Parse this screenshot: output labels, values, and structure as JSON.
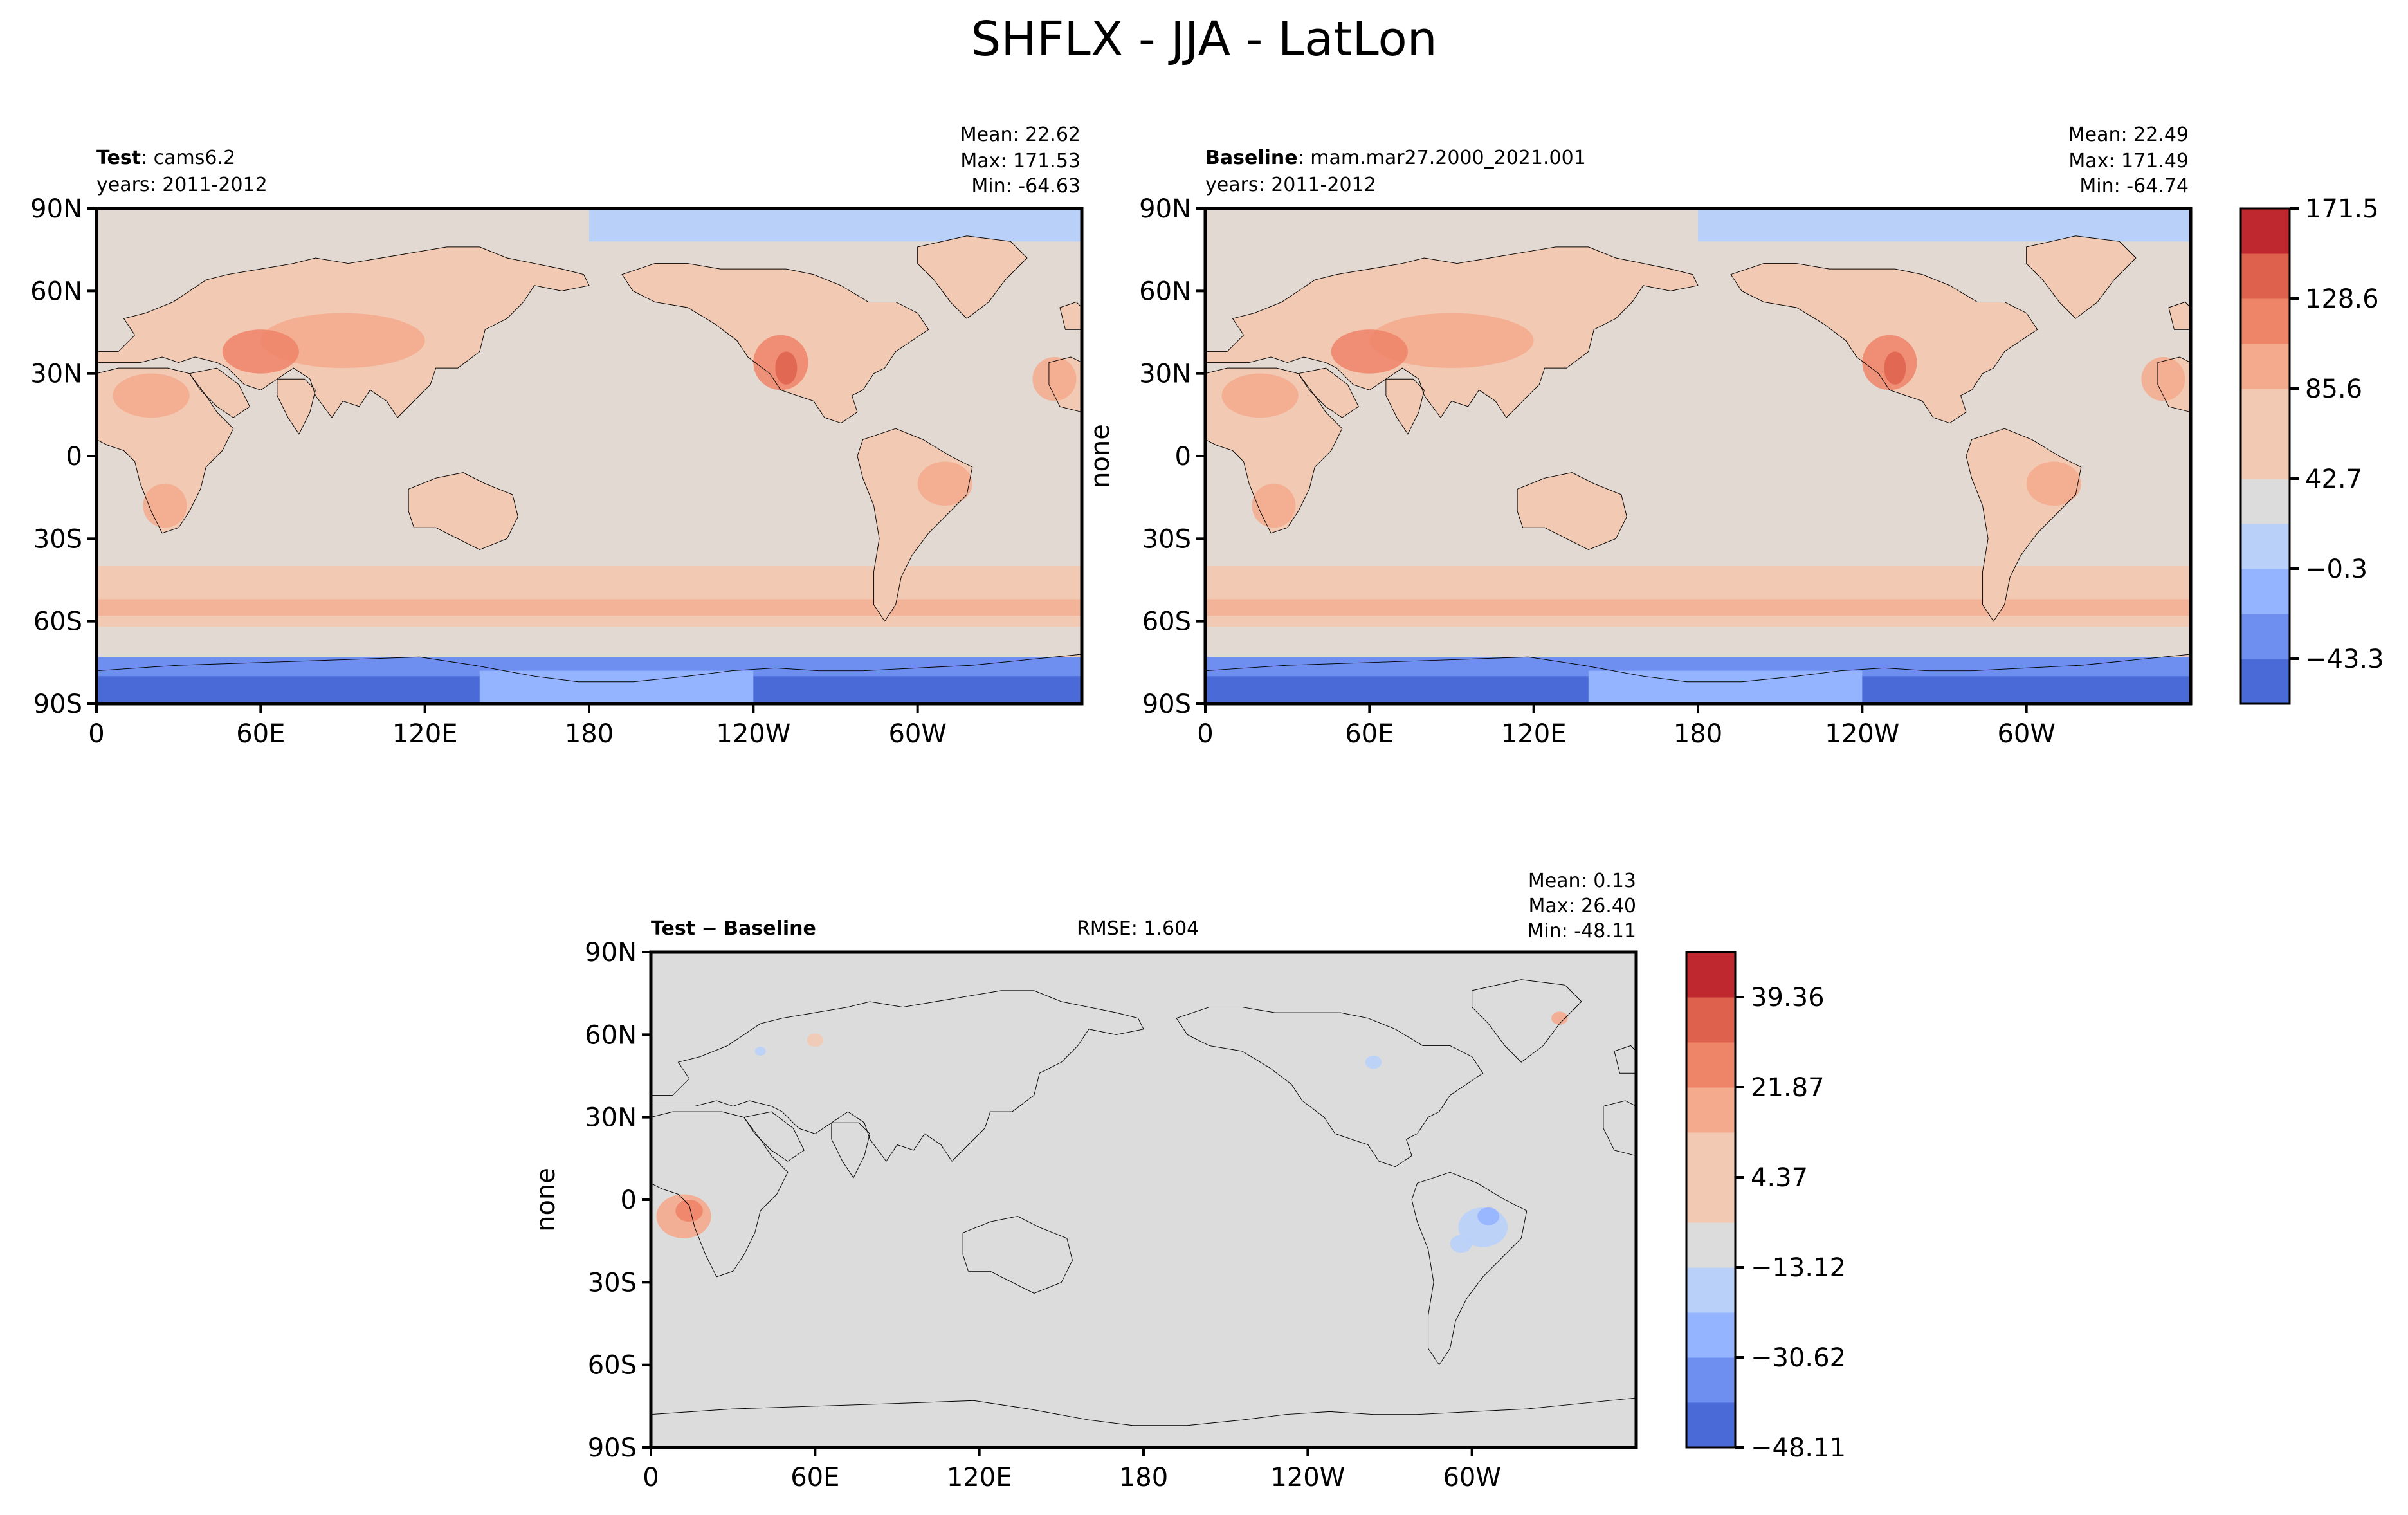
{
  "figure": {
    "title": "SHFLX - JJA - LatLon"
  },
  "colors": {
    "coolwarm": [
      "#4a6ad8",
      "#6f8ff0",
      "#94b4ff",
      "#b9d0f9",
      "#dcdcdc",
      "#f2c9b3",
      "#f4aa8d",
      "#ee8468",
      "#de614d",
      "#c0282f"
    ],
    "land_border": "#000000",
    "diff_background": "#dcdcdc",
    "mean_background": "#e3d9d3"
  },
  "panels": {
    "test": {
      "label_bold": "Test",
      "label_rest": ": cams6.2",
      "years": "years: 2011-2012",
      "mean": "Mean: 22.62",
      "max": "Max: 171.53",
      "min": "Min: -64.63"
    },
    "baseline": {
      "label_bold": "Baseline",
      "label_rest": ": mam.mar27.2000_2021.001",
      "years": "years: 2011-2012",
      "mean": "Mean: 22.49",
      "max": "Max: 171.49",
      "min": "Min: -64.74",
      "ylabel": "none"
    },
    "diff": {
      "label_bold_1": "Test",
      "label_sep": " − ",
      "label_bold_2": "Baseline",
      "rmse": "RMSE: 1.604",
      "mean": "Mean:  0.13",
      "max": "Max: 26.40",
      "min": "Min: -48.11",
      "ylabel": "none"
    }
  },
  "chart_data": [
    {
      "type": "heatmap",
      "name": "Test",
      "title": "Test: cams6.2",
      "subtitle": "years: 2011-2012",
      "x_ticks": [
        "0",
        "60E",
        "120E",
        "180",
        "120W",
        "60W"
      ],
      "y_ticks": [
        "90N",
        "60N",
        "30N",
        "0",
        "30S",
        "60S",
        "90S"
      ],
      "x_range": [
        0,
        360
      ],
      "y_range": [
        -90,
        90
      ],
      "stats": {
        "mean": 22.62,
        "max": 171.53,
        "min": -64.63
      }
    },
    {
      "type": "heatmap",
      "name": "Baseline",
      "title": "Baseline: mam.mar27.2000_2021.001",
      "subtitle": "years: 2011-2012",
      "ylabel": "none",
      "x_ticks": [
        "0",
        "60E",
        "120E",
        "180",
        "120W",
        "60W"
      ],
      "y_ticks": [
        "90N",
        "60N",
        "30N",
        "0",
        "30S",
        "60S",
        "90S"
      ],
      "x_range": [
        0,
        360
      ],
      "y_range": [
        -90,
        90
      ],
      "stats": {
        "mean": 22.49,
        "max": 171.49,
        "min": -64.74
      },
      "colorbar_ticks": [
        "171.5",
        "128.6",
        "85.6",
        "42.7",
        "−0.3",
        "−43.3"
      ],
      "colorbar_levels": [
        -64.74,
        -43.3,
        -21.8,
        -0.3,
        21.2,
        42.7,
        64.2,
        85.6,
        107.1,
        128.6,
        150.0,
        171.5
      ]
    },
    {
      "type": "heatmap",
      "name": "Test - Baseline",
      "title": "Test − Baseline",
      "ylabel": "none",
      "rmse": 1.604,
      "x_ticks": [
        "0",
        "60E",
        "120E",
        "180",
        "120W",
        "60W"
      ],
      "y_ticks": [
        "90N",
        "60N",
        "30N",
        "0",
        "30S",
        "60S",
        "90S"
      ],
      "x_range": [
        0,
        360
      ],
      "y_range": [
        -90,
        90
      ],
      "stats": {
        "mean": 0.13,
        "max": 26.4,
        "min": -48.11
      },
      "colorbar_ticks": [
        "39.36",
        "21.87",
        "4.37",
        "−13.12",
        "−30.62",
        "−48.11"
      ],
      "colorbar_levels": [
        -48.11,
        -39.36,
        -30.62,
        -21.87,
        -13.12,
        -4.37,
        4.37,
        13.12,
        21.87,
        30.62,
        39.36,
        48.11
      ]
    }
  ]
}
